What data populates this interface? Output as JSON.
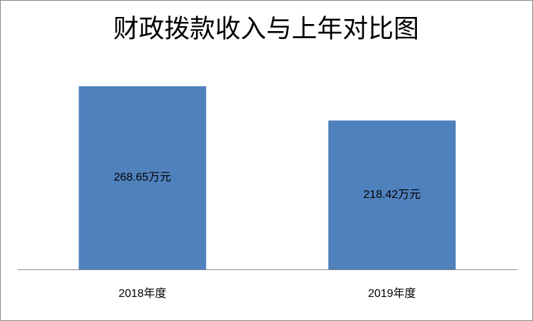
{
  "chart_data": {
    "type": "bar",
    "title": "财政拨款收入与上年对比图",
    "categories": [
      "2018年度",
      "2019年度"
    ],
    "values": [
      268.65,
      218.42
    ],
    "value_labels": [
      "268.65万元",
      "218.42万元"
    ],
    "color": "#4f81bd"
  }
}
